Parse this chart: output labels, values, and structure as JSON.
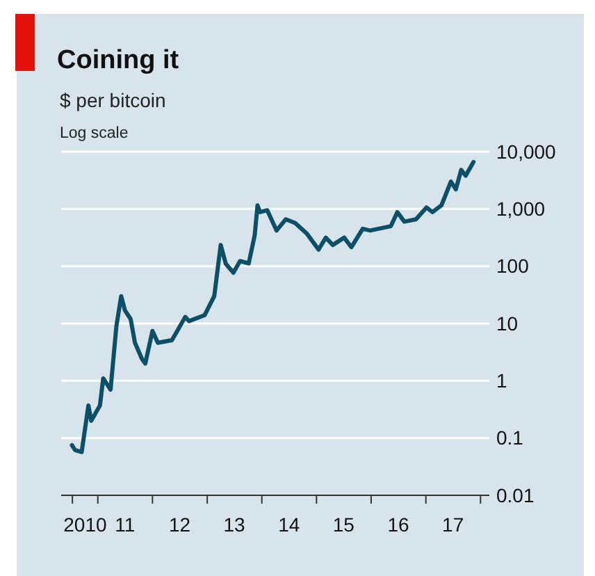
{
  "chart_data": {
    "type": "line",
    "title": "Coining it",
    "subtitle": "$ per bitcoin",
    "annotations": [
      "Log scale"
    ],
    "log": true,
    "grid": "y",
    "legend": false,
    "x": [
      "2010-07-12",
      "2010-08-01",
      "2010-09-15",
      "2010-10-30",
      "2010-11-18",
      "2011-01-15",
      "2011-02-06",
      "2011-03-27",
      "2011-05-05",
      "2011-06-06",
      "2011-07-01",
      "2011-08-08",
      "2011-09-06",
      "2011-10-23",
      "2011-11-14",
      "2012-01-01",
      "2012-02-06",
      "2012-05-10",
      "2012-08-07",
      "2012-09-01",
      "2012-12-15",
      "2013-02-17",
      "2013-04-01",
      "2013-05-05",
      "2013-06-25",
      "2013-08-08",
      "2013-10-05",
      "2013-11-14",
      "2013-12-03",
      "2013-12-20",
      "2014-02-06",
      "2014-04-09",
      "2014-06-10",
      "2014-08-11",
      "2014-10-27",
      "2015-01-15",
      "2015-03-04",
      "2015-04-20",
      "2015-07-05",
      "2015-08-22",
      "2015-11-06",
      "2015-12-25",
      "2016-05-12",
      "2016-06-24",
      "2016-08-10",
      "2016-10-27",
      "2017-01-05",
      "2017-02-14",
      "2017-04-15",
      "2017-06-17",
      "2017-07-20",
      "2017-08-25",
      "2017-09-24",
      "2017-11-15"
    ],
    "series": [
      {
        "color": "#0d4f66",
        "values": [
          0.075,
          0.062,
          0.057,
          0.37,
          0.2,
          0.37,
          1.1,
          0.7,
          9,
          30,
          17,
          12,
          4.6,
          2.4,
          2,
          7.4,
          4.6,
          5.1,
          13,
          11,
          14,
          30,
          235,
          110,
          77,
          123,
          112,
          345,
          1150,
          880,
          950,
          420,
          660,
          570,
          375,
          195,
          315,
          235,
          315,
          215,
          450,
          420,
          500,
          880,
          600,
          660,
          1060,
          880,
          1160,
          3000,
          2200,
          4800,
          3800,
          6600
        ]
      }
    ],
    "xlim": [
      "2010-05-01",
      "2018-03-01"
    ],
    "xticks": [
      {
        "value": "2010-07-15",
        "label": null
      },
      {
        "value": "2010-10-08",
        "label": "2010"
      },
      {
        "value": "2011-01-01",
        "label": null
      },
      {
        "value": "2011-07-01",
        "label": "11"
      },
      {
        "value": "2012-01-01",
        "label": null
      },
      {
        "value": "2012-07-01",
        "label": "12"
      },
      {
        "value": "2013-01-01",
        "label": null
      },
      {
        "value": "2013-07-01",
        "label": "13"
      },
      {
        "value": "2014-01-01",
        "label": null
      },
      {
        "value": "2014-07-01",
        "label": "14"
      },
      {
        "value": "2015-01-01",
        "label": null
      },
      {
        "value": "2015-07-01",
        "label": "15"
      },
      {
        "value": "2016-01-01",
        "label": null
      },
      {
        "value": "2016-07-01",
        "label": "16"
      },
      {
        "value": "2017-01-01",
        "label": null
      },
      {
        "value": "2017-07-01",
        "label": "17"
      },
      {
        "value": "2018-01-01",
        "label": null
      }
    ],
    "ylim": [
      0.01,
      10000
    ],
    "yticks": [
      0.01,
      0.1,
      1,
      10,
      100,
      {
        "value": 1000,
        "label": "1,000"
      },
      {
        "value": 10000,
        "label": "10,000"
      }
    ]
  }
}
